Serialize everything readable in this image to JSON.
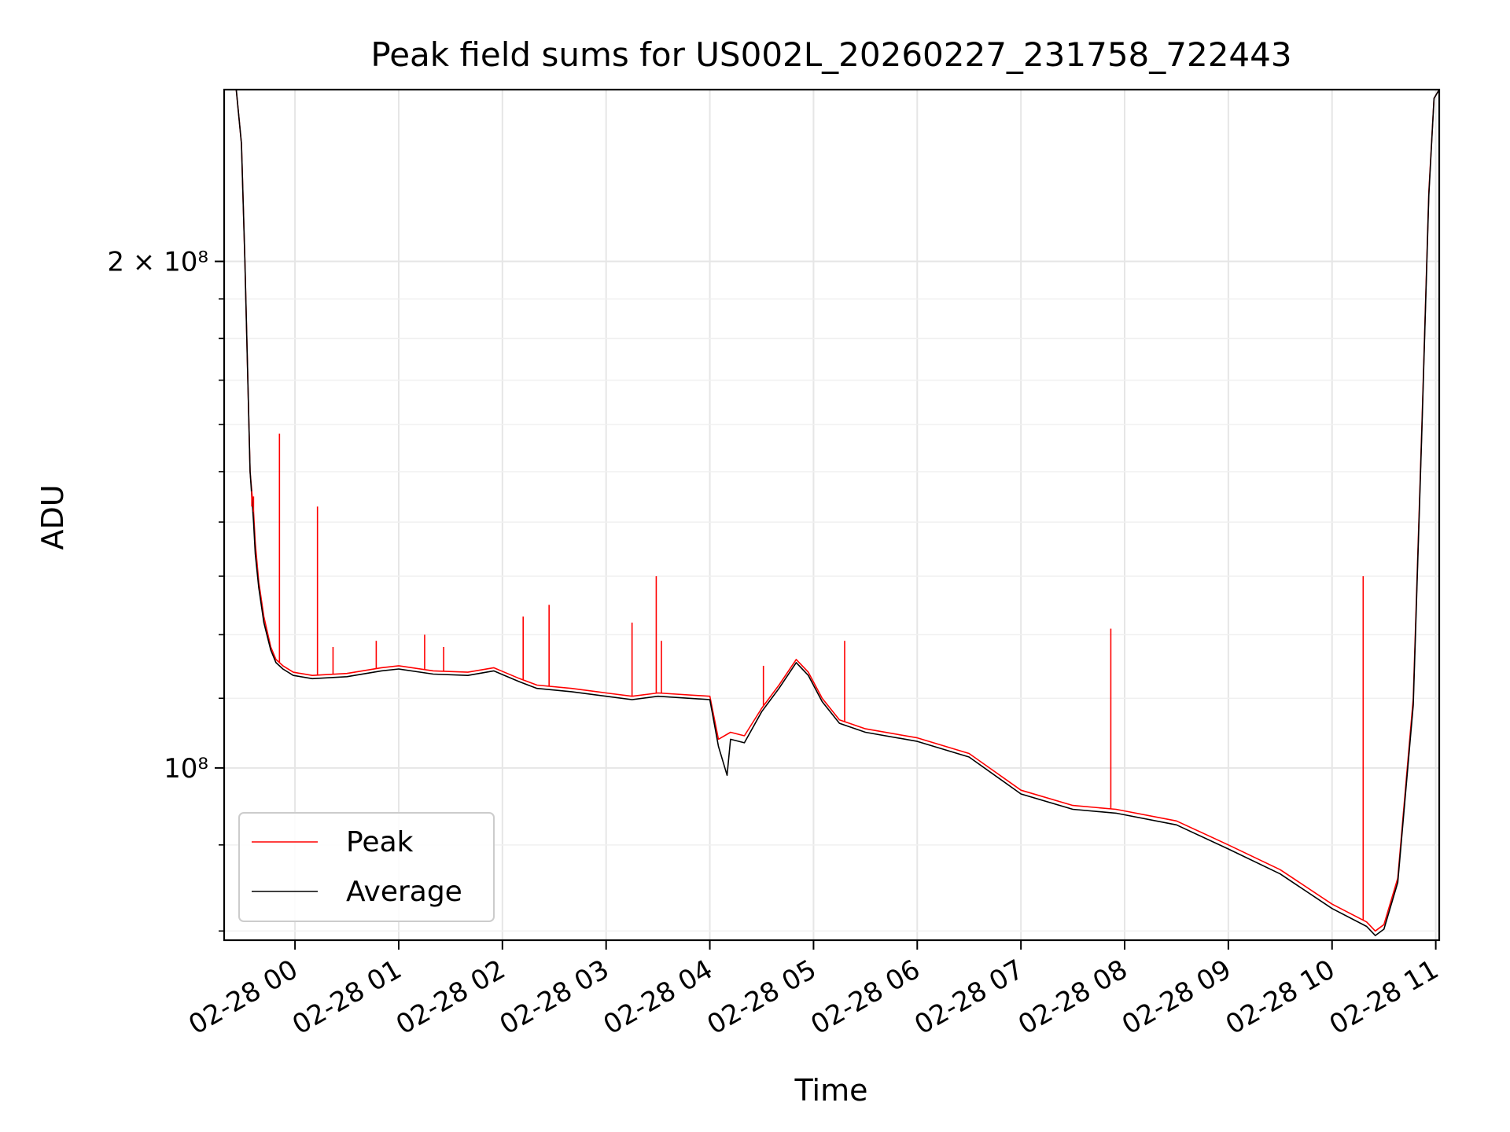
{
  "chart_data": {
    "type": "line",
    "title": "Peak field sums for US002L_20260227_231758_722443",
    "xlabel": "Time",
    "ylabel": "ADU",
    "yscale": "log",
    "xlim": [
      "2026-02-27 23:19",
      "2026-02-28 11:02"
    ],
    "ylim": [
      79000000,
      253000000
    ],
    "grid": true,
    "legend_position": "bottom-left",
    "x_tick_labels": [
      "02-28 00",
      "02-28 01",
      "02-28 02",
      "02-28 03",
      "02-28 04",
      "02-28 05",
      "02-28 06",
      "02-28 07",
      "02-28 08",
      "02-28 09",
      "02-28 10",
      "02-28 11"
    ],
    "x_tick_times": [
      "2026-02-28 00:00",
      "2026-02-28 01:00",
      "2026-02-28 02:00",
      "2026-02-28 03:00",
      "2026-02-28 04:00",
      "2026-02-28 05:00",
      "2026-02-28 06:00",
      "2026-02-28 07:00",
      "2026-02-28 08:00",
      "2026-02-28 09:00",
      "2026-02-28 10:00",
      "2026-02-28 11:00"
    ],
    "y_ticks": [
      {
        "value": 200000000,
        "label": "2 × 10⁸"
      },
      {
        "value": 100000000,
        "label": "10⁸"
      }
    ],
    "series": [
      {
        "name": "Peak",
        "color": "#ff0000",
        "points": [
          [
            "2026-02-27 23:19",
            253000000
          ],
          [
            "2026-02-27 23:26",
            253000000
          ],
          [
            "2026-02-27 23:29",
            235000000
          ],
          [
            "2026-02-27 23:31",
            200000000
          ],
          [
            "2026-02-27 23:34",
            150000000
          ],
          [
            "2026-02-27 23:36",
            142000000
          ],
          [
            "2026-02-27 23:37",
            136000000
          ],
          [
            "2026-02-27 23:39",
            129000000
          ],
          [
            "2026-02-27 23:42",
            123000000
          ],
          [
            "2026-02-27 23:46",
            118000000
          ],
          [
            "2026-02-27 23:49",
            116000000
          ],
          [
            "2026-02-27 23:53",
            115000000
          ],
          [
            "2026-02-27 23:59",
            114000000
          ],
          [
            "2026-02-28 00:10",
            113500000
          ],
          [
            "2026-02-28 00:30",
            113800000
          ],
          [
            "2026-02-28 00:50",
            114700000
          ],
          [
            "2026-02-28 01:00",
            115000000
          ],
          [
            "2026-02-28 01:20",
            114200000
          ],
          [
            "2026-02-28 01:40",
            114000000
          ],
          [
            "2026-02-28 01:55",
            114700000
          ],
          [
            "2026-02-28 02:10",
            113000000
          ],
          [
            "2026-02-28 02:20",
            112000000
          ],
          [
            "2026-02-28 02:40",
            111500000
          ],
          [
            "2026-02-28 03:00",
            110800000
          ],
          [
            "2026-02-28 03:15",
            110300000
          ],
          [
            "2026-02-28 03:30",
            110800000
          ],
          [
            "2026-02-28 04:00",
            110300000
          ],
          [
            "2026-02-28 04:05",
            104000000
          ],
          [
            "2026-02-28 04:12",
            105000000
          ],
          [
            "2026-02-28 04:20",
            104500000
          ],
          [
            "2026-02-28 04:30",
            108500000
          ],
          [
            "2026-02-28 04:40",
            112000000
          ],
          [
            "2026-02-28 04:50",
            116000000
          ],
          [
            "2026-02-28 04:57",
            114000000
          ],
          [
            "2026-02-28 05:05",
            110000000
          ],
          [
            "2026-02-28 05:15",
            106800000
          ],
          [
            "2026-02-28 05:30",
            105500000
          ],
          [
            "2026-02-28 06:00",
            104200000
          ],
          [
            "2026-02-28 06:30",
            102000000
          ],
          [
            "2026-02-28 07:00",
            97000000
          ],
          [
            "2026-02-28 07:30",
            95000000
          ],
          [
            "2026-02-28 07:55",
            94500000
          ],
          [
            "2026-02-28 08:30",
            93000000
          ],
          [
            "2026-02-28 09:00",
            90000000
          ],
          [
            "2026-02-28 09:30",
            87000000
          ],
          [
            "2026-02-28 10:00",
            83000000
          ],
          [
            "2026-02-28 10:20",
            81000000
          ],
          [
            "2026-02-28 10:25",
            80000000
          ],
          [
            "2026-02-28 10:30",
            80700000
          ],
          [
            "2026-02-28 10:38",
            86000000
          ],
          [
            "2026-02-28 10:47",
            110000000
          ],
          [
            "2026-02-28 10:52",
            160000000
          ],
          [
            "2026-02-28 10:56",
            220000000
          ],
          [
            "2026-02-28 10:59",
            250000000
          ],
          [
            "2026-02-28 11:02",
            253000000
          ]
        ]
      },
      {
        "name": "Average",
        "color": "#000000",
        "points": [
          [
            "2026-02-27 23:19",
            253000000
          ],
          [
            "2026-02-27 23:26",
            253000000
          ],
          [
            "2026-02-27 23:29",
            235000000
          ],
          [
            "2026-02-27 23:31",
            200000000
          ],
          [
            "2026-02-27 23:34",
            150000000
          ],
          [
            "2026-02-27 23:36",
            140000000
          ],
          [
            "2026-02-27 23:37",
            134000000
          ],
          [
            "2026-02-27 23:39",
            128000000
          ],
          [
            "2026-02-27 23:42",
            122000000
          ],
          [
            "2026-02-27 23:46",
            117500000
          ],
          [
            "2026-02-27 23:49",
            115500000
          ],
          [
            "2026-02-27 23:53",
            114500000
          ],
          [
            "2026-02-27 23:59",
            113500000
          ],
          [
            "2026-02-28 00:10",
            113000000
          ],
          [
            "2026-02-28 00:30",
            113300000
          ],
          [
            "2026-02-28 00:50",
            114200000
          ],
          [
            "2026-02-28 01:00",
            114500000
          ],
          [
            "2026-02-28 01:20",
            113700000
          ],
          [
            "2026-02-28 01:40",
            113500000
          ],
          [
            "2026-02-28 01:55",
            114200000
          ],
          [
            "2026-02-28 02:10",
            112500000
          ],
          [
            "2026-02-28 02:20",
            111500000
          ],
          [
            "2026-02-28 02:40",
            111000000
          ],
          [
            "2026-02-28 03:00",
            110300000
          ],
          [
            "2026-02-28 03:15",
            109800000
          ],
          [
            "2026-02-28 03:30",
            110300000
          ],
          [
            "2026-02-28 04:00",
            109800000
          ],
          [
            "2026-02-28 04:05",
            103000000
          ],
          [
            "2026-02-28 04:10",
            99000000
          ],
          [
            "2026-02-28 04:12",
            104000000
          ],
          [
            "2026-02-28 04:20",
            103500000
          ],
          [
            "2026-02-28 04:30",
            108000000
          ],
          [
            "2026-02-28 04:40",
            111500000
          ],
          [
            "2026-02-28 04:50",
            115500000
          ],
          [
            "2026-02-28 04:57",
            113500000
          ],
          [
            "2026-02-28 05:05",
            109500000
          ],
          [
            "2026-02-28 05:15",
            106300000
          ],
          [
            "2026-02-28 05:30",
            105000000
          ],
          [
            "2026-02-28 06:00",
            103700000
          ],
          [
            "2026-02-28 06:30",
            101500000
          ],
          [
            "2026-02-28 07:00",
            96500000
          ],
          [
            "2026-02-28 07:30",
            94500000
          ],
          [
            "2026-02-28 07:55",
            94000000
          ],
          [
            "2026-02-28 08:30",
            92500000
          ],
          [
            "2026-02-28 09:00",
            89500000
          ],
          [
            "2026-02-28 09:30",
            86500000
          ],
          [
            "2026-02-28 10:00",
            82500000
          ],
          [
            "2026-02-28 10:20",
            80500000
          ],
          [
            "2026-02-28 10:25",
            79500000
          ],
          [
            "2026-02-28 10:30",
            80200000
          ],
          [
            "2026-02-28 10:38",
            85500000
          ],
          [
            "2026-02-28 10:47",
            109000000
          ],
          [
            "2026-02-28 10:52",
            159000000
          ],
          [
            "2026-02-28 10:56",
            219000000
          ],
          [
            "2026-02-28 10:59",
            250000000
          ],
          [
            "2026-02-28 11:02",
            253000000
          ]
        ]
      }
    ],
    "spikes": [
      {
        "time": "2026-02-27 23:35",
        "value": 143000000,
        "series": "Peak"
      },
      {
        "time": "2026-02-27 23:36",
        "value": 145000000,
        "series": "Peak"
      },
      {
        "time": "2026-02-27 23:51",
        "value": 158000000,
        "series": "Peak"
      },
      {
        "time": "2026-02-28 00:13",
        "value": 143000000,
        "series": "Peak"
      },
      {
        "time": "2026-02-28 00:22",
        "value": 118000000,
        "series": "Peak"
      },
      {
        "time": "2026-02-28 00:47",
        "value": 119000000,
        "series": "Peak"
      },
      {
        "time": "2026-02-28 01:15",
        "value": 120000000,
        "series": "Peak"
      },
      {
        "time": "2026-02-28 01:26",
        "value": 118000000,
        "series": "Peak"
      },
      {
        "time": "2026-02-28 02:12",
        "value": 123000000,
        "series": "Peak"
      },
      {
        "time": "2026-02-28 02:27",
        "value": 125000000,
        "series": "Peak"
      },
      {
        "time": "2026-02-28 03:15",
        "value": 122000000,
        "series": "Peak"
      },
      {
        "time": "2026-02-28 03:29",
        "value": 130000000,
        "series": "Peak"
      },
      {
        "time": "2026-02-28 03:32",
        "value": 119000000,
        "series": "Peak"
      },
      {
        "time": "2026-02-28 04:31",
        "value": 115000000,
        "series": "Peak"
      },
      {
        "time": "2026-02-28 05:18",
        "value": 119000000,
        "series": "Peak"
      },
      {
        "time": "2026-02-28 07:52",
        "value": 121000000,
        "series": "Peak"
      },
      {
        "time": "2026-02-28 10:18",
        "value": 130000000,
        "series": "Peak"
      }
    ]
  }
}
